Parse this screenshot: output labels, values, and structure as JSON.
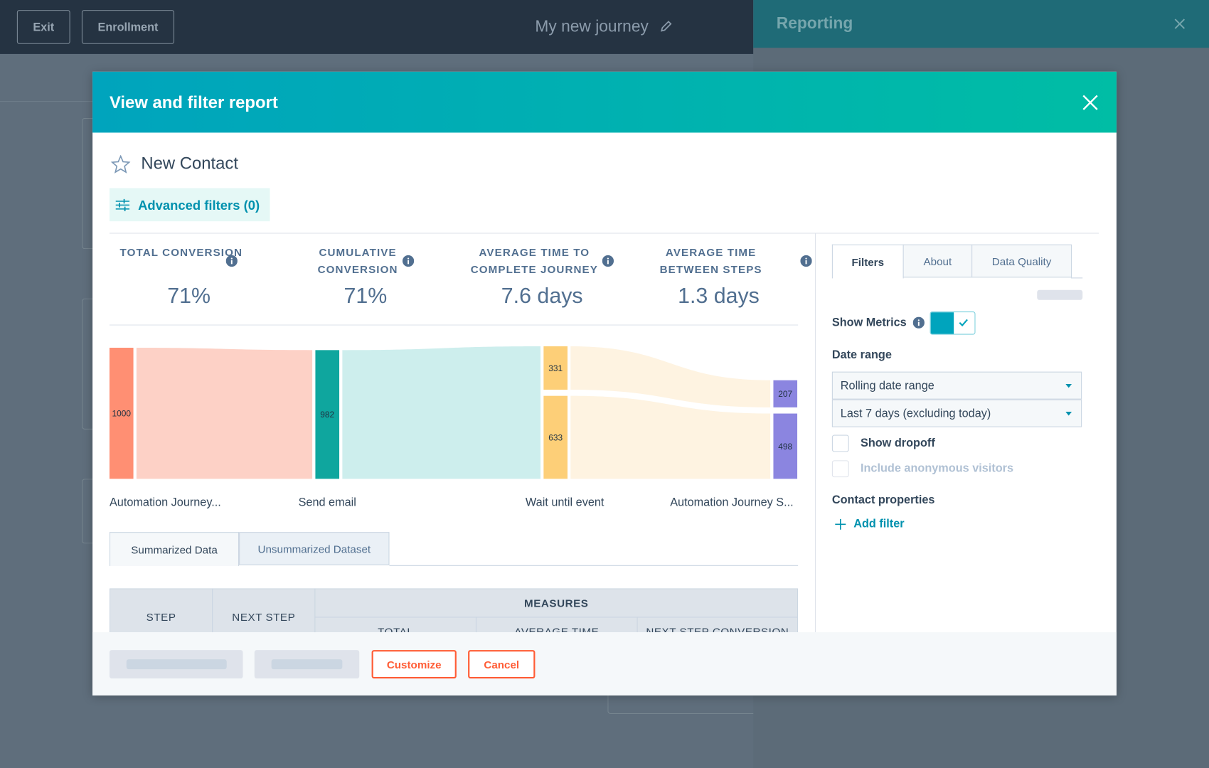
{
  "topbar": {
    "buttons": [
      "Exit",
      "Enrollment"
    ],
    "title": "My new journey"
  },
  "side_panel": {
    "title": "Reporting"
  },
  "modal": {
    "title": "View and filter report",
    "report_name": "New Contact",
    "advanced_filters": "Advanced filters (0)",
    "metrics": [
      {
        "label": "TOTAL CONVERSION",
        "value": "71%"
      },
      {
        "label": "CUMULATIVE CONVERSION",
        "value": "71%"
      },
      {
        "label": "AVERAGE TIME TO COMPLETE JOURNEY",
        "value": "7.6 days"
      },
      {
        "label": "AVERAGE TIME BETWEEN STEPS",
        "value": "1.3 days"
      }
    ],
    "funnel": {
      "steps": [
        {
          "label": "Automation Journey...",
          "nodes": [
            1000
          ]
        },
        {
          "label": "Send email",
          "nodes": [
            982
          ]
        },
        {
          "label": "Wait until event",
          "nodes": [
            331,
            633
          ]
        },
        {
          "label": "Automation Journey S...",
          "nodes": [
            207,
            498
          ]
        }
      ]
    },
    "tabs": [
      "Summarized Data",
      "Unsummarized Dataset"
    ],
    "table": {
      "headers": [
        "STEP",
        "NEXT STEP"
      ],
      "group": "MEASURES",
      "subheaders": [
        "TOTAL",
        "AVERAGE TIME",
        "NEXT STEP CONVERSION"
      ]
    },
    "sidebar": {
      "tabs": [
        "Filters",
        "About",
        "Data Quality"
      ],
      "show_metrics": "Show Metrics",
      "date_range_label": "Date range",
      "date_range": "Rolling date range",
      "period": "Last 7 days (excluding today)",
      "show_dropoff": "Show dropoff",
      "anonymous": "Include anonymous visitors",
      "contact_properties": "Contact properties",
      "add_filter": "Add filter"
    },
    "footer": {
      "buttons": [
        "Customize",
        "Cancel"
      ]
    }
  }
}
